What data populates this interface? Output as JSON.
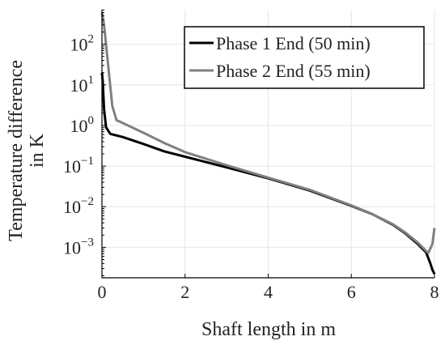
{
  "chart_data": {
    "type": "line",
    "title": "",
    "xlabel": "Shaft length in m",
    "ylabel_lines": [
      "Temperature difference",
      "in K"
    ],
    "xlim": [
      0,
      8
    ],
    "ylim_exponent": [
      -3.75,
      2.85
    ],
    "yscale": "log",
    "grid": true,
    "legend_position": "top-right",
    "x_ticks": [
      "0",
      "2",
      "4",
      "6",
      "8"
    ],
    "y_ticks": [
      {
        "base": "10",
        "exp": "−3"
      },
      {
        "base": "10",
        "exp": "−2"
      },
      {
        "base": "10",
        "exp": "−1"
      },
      {
        "base": "10",
        "exp": "0"
      },
      {
        "base": "10",
        "exp": "1"
      },
      {
        "base": "10",
        "exp": "2"
      }
    ],
    "series": [
      {
        "name": "Phase 1 End (50 min)",
        "color": "#000000",
        "points": [
          [
            0.0,
            20
          ],
          [
            0.02,
            12
          ],
          [
            0.05,
            2.5
          ],
          [
            0.1,
            0.9
          ],
          [
            0.2,
            0.62
          ],
          [
            0.5,
            0.52
          ],
          [
            1,
            0.35
          ],
          [
            1.5,
            0.23
          ],
          [
            2,
            0.17
          ],
          [
            3,
            0.093
          ],
          [
            4,
            0.05
          ],
          [
            5,
            0.025
          ],
          [
            6,
            0.0105
          ],
          [
            6.5,
            0.0066
          ],
          [
            7,
            0.0036
          ],
          [
            7.3,
            0.0022
          ],
          [
            7.6,
            0.0012
          ],
          [
            7.8,
            0.00075
          ],
          [
            7.9,
            0.0004
          ],
          [
            7.95,
            0.00028
          ],
          [
            8.0,
            0.00022
          ]
        ]
      },
      {
        "name": "Phase 2 End (55 min)",
        "color": "#808080",
        "points": [
          [
            0.0,
            600
          ],
          [
            0.05,
            300
          ],
          [
            0.15,
            30
          ],
          [
            0.25,
            3
          ],
          [
            0.35,
            1.35
          ],
          [
            0.5,
            1.15
          ],
          [
            1,
            0.66
          ],
          [
            1.5,
            0.37
          ],
          [
            2,
            0.22
          ],
          [
            3,
            0.105
          ],
          [
            4,
            0.052
          ],
          [
            5,
            0.026
          ],
          [
            6,
            0.0108
          ],
          [
            6.5,
            0.0066
          ],
          [
            7,
            0.0037
          ],
          [
            7.3,
            0.0023
          ],
          [
            7.6,
            0.0013
          ],
          [
            7.85,
            0.00072
          ],
          [
            7.95,
            0.0012
          ],
          [
            8.0,
            0.003
          ]
        ]
      }
    ]
  }
}
